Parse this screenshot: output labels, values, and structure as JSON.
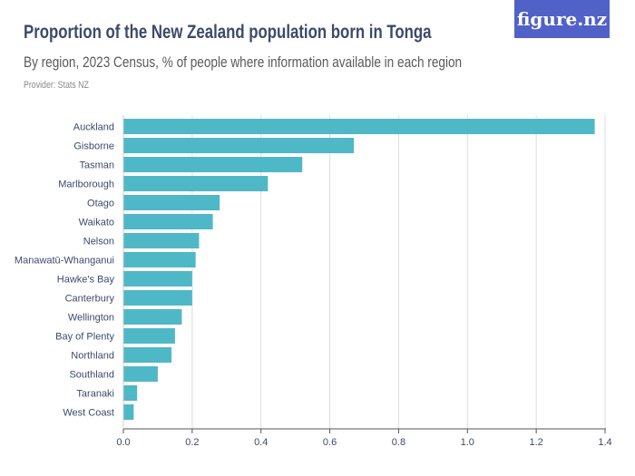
{
  "header": {
    "title": "Proportion of the New Zealand population born in Tonga",
    "subtitle": "By region, 2023 Census, % of people where information available in each region",
    "provider": "Provider: Stats NZ",
    "logo_text": "figure.nz",
    "logo_color": "#5061c8"
  },
  "chart_data": {
    "type": "bar",
    "orientation": "horizontal",
    "title": "Proportion of the New Zealand population born in Tonga",
    "subtitle": "By region, 2023 Census, % of people where information available in each region",
    "categories": [
      "Auckland",
      "Gisborne",
      "Tasman",
      "Marlborough",
      "Otago",
      "Waikato",
      "Nelson",
      "Manawatū-Whanganui",
      "Hawke's Bay",
      "Canterbury",
      "Wellington",
      "Bay of Plenty",
      "Northland",
      "Southland",
      "Taranaki",
      "West Coast"
    ],
    "values": [
      1.37,
      0.67,
      0.52,
      0.42,
      0.28,
      0.26,
      0.22,
      0.21,
      0.2,
      0.2,
      0.17,
      0.15,
      0.14,
      0.1,
      0.04,
      0.03
    ],
    "xlim": [
      0,
      1.4
    ],
    "xticks": [
      "0.0",
      "0.2",
      "0.4",
      "0.6",
      "0.8",
      "1.0",
      "1.2",
      "1.4"
    ],
    "grid": true,
    "bar_color": "#4fb8c6"
  }
}
